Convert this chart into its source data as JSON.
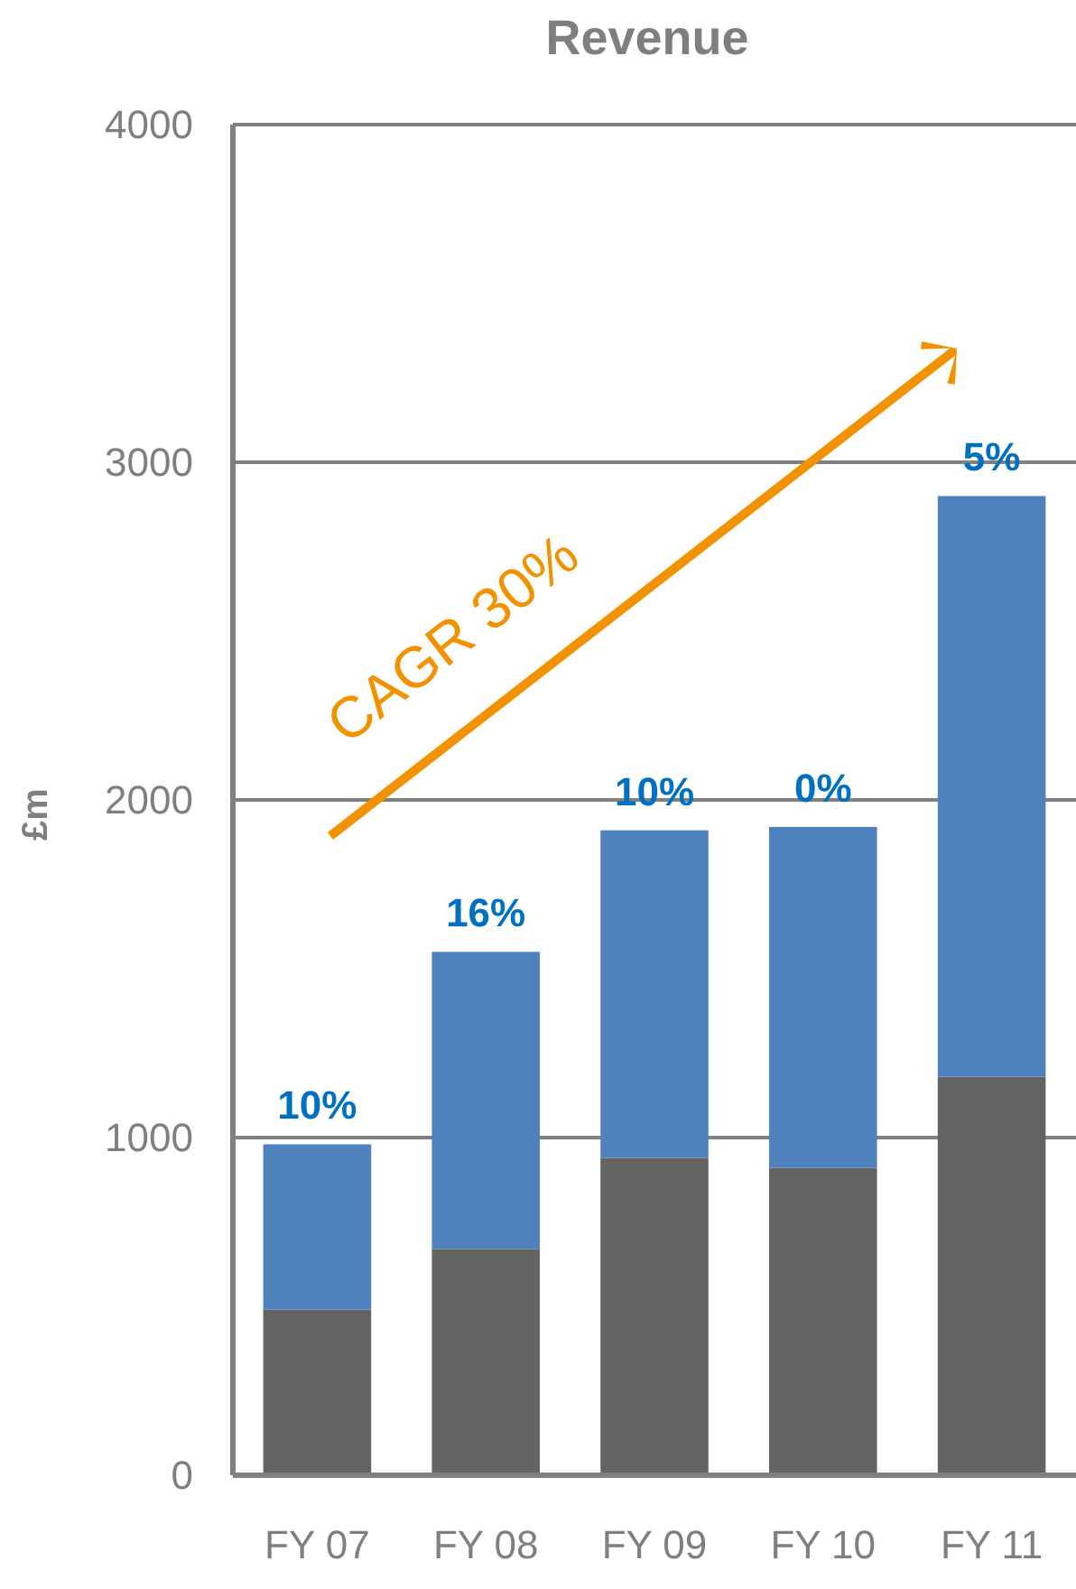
{
  "chart_data": {
    "type": "bar",
    "title": "Revenue",
    "ylabel": "£m",
    "categories": [
      "FY 07",
      "FY 08",
      "FY 09",
      "FY 10",
      "FY 11"
    ],
    "series": [
      {
        "color": "#636363",
        "values": [
          490,
          670,
          940,
          910,
          1180
        ]
      },
      {
        "color": "#4f81bd",
        "values": [
          490,
          880,
          970,
          1010,
          1720
        ]
      }
    ],
    "stacked": true,
    "ylim": [
      0,
      4000
    ],
    "yticks": [
      0,
      1000,
      2000,
      3000,
      4000
    ],
    "grid": "y",
    "annotations": [
      {
        "text": "10%",
        "x": "FY 07",
        "y": 980
      },
      {
        "text": "16%",
        "x": "FY 08",
        "y": 1550
      },
      {
        "text": "10%",
        "x": "FY 09",
        "y": 1910
      },
      {
        "text": "0%",
        "x": "FY 10",
        "y": 1920
      },
      {
        "text": "5%",
        "x": "FY 11",
        "y": 2900
      },
      "CAGR 30%"
    ]
  }
}
